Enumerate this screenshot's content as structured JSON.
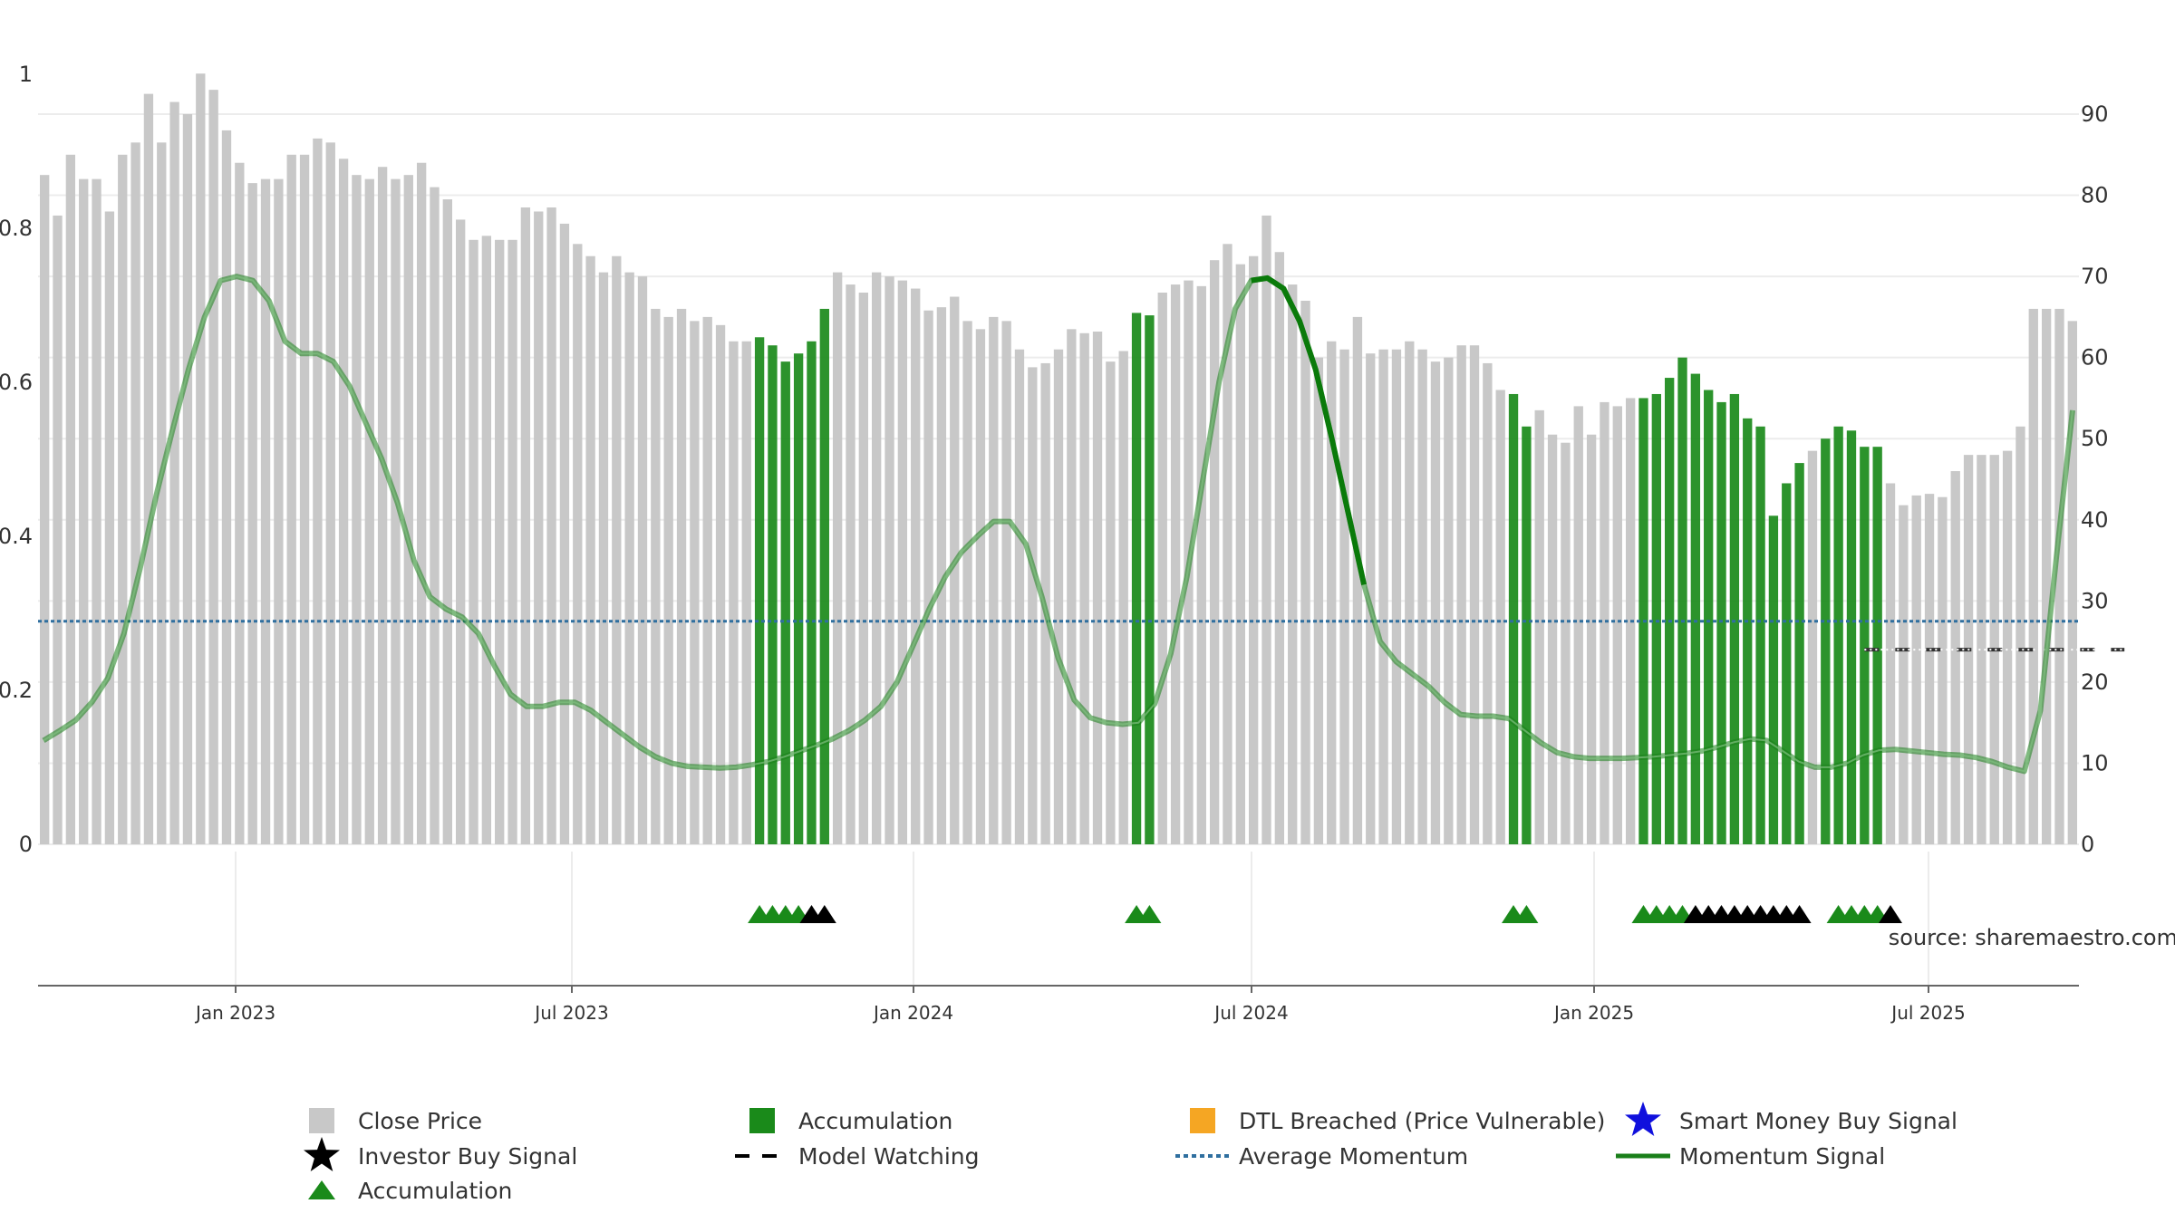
{
  "chart_data": {
    "type": "bar",
    "title": "",
    "watermark": "source: sharemaestro.com",
    "colors": {
      "close_price": "#c8c8c8",
      "accumulation": "#1a8a1a",
      "momentum": "#1a7f1a",
      "average_momentum": "#2f6f9f",
      "model_watching": "#333333",
      "investor_buy": "#000000",
      "dtl_breached": "#f5a623",
      "smart_money": "#1010dd"
    },
    "x_axis": {
      "ticks": [
        "Jan 2023",
        "Jul 2023",
        "Jan 2024",
        "Jul 2024",
        "Jan 2025",
        "Jul 2025"
      ]
    },
    "left_axis": {
      "range": [
        0,
        1
      ],
      "tick_values": [
        0,
        0.2,
        0.4,
        0.6,
        0.8,
        1
      ],
      "tick_labels": [
        "0",
        "0.2",
        "0.4",
        "0.6",
        "0.8",
        "1"
      ]
    },
    "right_axis": {
      "range": [
        0,
        90
      ],
      "tick_values": [
        0,
        10,
        20,
        30,
        40,
        50,
        60,
        70,
        80,
        90
      ],
      "tick_labels": [
        "0",
        "10",
        "20",
        "30",
        "40",
        "50",
        "60",
        "70",
        "80",
        "90"
      ]
    },
    "close_price_scale": [
      0,
      90
    ],
    "close_price": [
      82.5,
      77.5,
      85,
      82,
      82,
      78,
      85,
      86.5,
      92.5,
      86.5,
      91.5,
      90,
      95,
      93,
      88,
      84,
      81.5,
      82,
      82,
      85,
      85,
      87,
      86.5,
      84.5,
      82.5,
      82,
      83.5,
      82,
      82.5,
      84,
      81,
      79.5,
      77,
      74.5,
      75,
      74.5,
      74.5,
      78.5,
      78,
      78.5,
      76.5,
      74,
      72.5,
      70.5,
      72.5,
      70.5,
      70,
      66,
      65,
      66,
      64.5,
      65,
      64,
      62,
      62,
      62.5,
      61.5,
      59.5,
      60.5,
      62,
      66,
      70.5,
      69,
      68,
      70.5,
      70,
      69.5,
      68.5,
      65.8,
      66.2,
      67.5,
      64.5,
      63.5,
      65,
      64.5,
      61,
      58.8,
      59.3,
      61,
      63.5,
      63,
      63.2,
      59.5,
      60.8,
      65.5,
      65.2,
      68,
      69,
      69.5,
      68.8,
      72,
      74,
      71.5,
      72.5,
      77.5,
      73,
      69,
      67,
      60,
      62,
      61,
      65,
      60.5,
      61,
      61,
      62,
      61,
      59.5,
      60,
      61.5,
      61.5,
      59.3,
      56,
      55.5,
      51.5,
      53.5,
      50.5,
      49.5,
      54,
      50.5,
      54.5,
      54,
      55,
      55,
      55.5,
      57.5,
      60,
      58,
      56,
      54.5,
      55.5,
      52.5,
      51.5,
      40.5,
      44.5,
      47,
      48.5,
      50,
      51.5,
      51,
      49,
      49,
      44.5,
      41.8,
      43,
      43.2,
      42.8,
      46,
      48,
      48,
      48,
      48.5,
      51.5,
      66,
      66,
      66,
      64.5
    ],
    "accumulation_bars": [
      55,
      56,
      57,
      58,
      59,
      60,
      84,
      85,
      113,
      114,
      123,
      124,
      125,
      126,
      127,
      128,
      129,
      130,
      131,
      132,
      133,
      134,
      135,
      137,
      138,
      139,
      140,
      141
    ],
    "momentum": [
      12.8,
      14,
      15.3,
      17.5,
      20.5,
      26,
      34,
      43,
      51,
      58.5,
      65,
      69.5,
      70,
      69.5,
      67,
      62,
      60.5,
      60.5,
      59.5,
      56.5,
      52,
      47.5,
      42,
      35,
      30.5,
      29,
      28,
      26,
      22,
      18.5,
      17,
      17,
      17.5,
      17.5,
      16.5,
      15,
      13.5,
      12,
      10.8,
      10,
      9.6,
      9.5,
      9.4,
      9.5,
      9.8,
      10.2,
      10.8,
      11.5,
      12.2,
      13,
      14,
      15.3,
      17,
      20,
      24.5,
      29,
      33,
      36,
      38,
      39.8,
      39.8,
      37,
      30.5,
      23,
      17.8,
      15.6,
      15,
      14.8,
      15,
      17.3,
      23.5,
      33,
      45,
      57,
      66,
      69.5,
      69.8,
      68.5,
      64.5,
      58.5,
      50,
      41,
      32,
      25,
      22.5,
      21,
      19.5,
      17.5,
      16,
      15.8,
      15.8,
      15.5,
      14,
      12.5,
      11.3,
      10.8,
      10.6,
      10.6,
      10.6,
      10.7,
      10.8,
      11,
      11.2,
      11.5,
      12,
      12.6,
      13,
      12.8,
      11.5,
      10.2,
      9.5,
      9.5,
      10,
      11,
      11.6,
      11.7,
      11.5,
      11.3,
      11.1,
      11,
      10.7,
      10.2,
      9.5,
      9,
      16.5,
      35.5,
      53.5
    ],
    "momentum_highlight": [
      [
        75,
        82
      ]
    ],
    "average_momentum": 27.5,
    "model_watching_value": 24,
    "model_watching_range": [
      140,
      160
    ],
    "accumulation_markers": [
      55,
      56,
      57,
      58,
      84,
      85,
      113,
      114,
      123,
      124,
      125,
      126,
      138,
      139,
      140,
      141
    ],
    "investor_buy_markers": [
      59,
      60,
      127,
      128,
      129,
      130,
      131,
      132,
      133,
      134,
      135,
      142
    ],
    "legend": [
      {
        "label": "Close Price",
        "shape": "square",
        "color": "#c8c8c8"
      },
      {
        "label": "Accumulation",
        "shape": "square",
        "color": "#1a8a1a"
      },
      {
        "label": "DTL Breached (Price Vulnerable)",
        "shape": "square",
        "color": "#f5a623"
      },
      {
        "label": "Smart Money Buy Signal",
        "shape": "star",
        "color": "#1010dd"
      },
      {
        "label": "Investor Buy Signal",
        "shape": "star",
        "color": "#000000"
      },
      {
        "label": "Model Watching",
        "shape": "dash",
        "color": "#000000"
      },
      {
        "label": "Average Momentum",
        "shape": "dotted",
        "color": "#2f6f9f"
      },
      {
        "label": "Momentum Signal",
        "shape": "line",
        "color": "#1a7f1a"
      },
      {
        "label": "Accumulation",
        "shape": "triangle",
        "color": "#1a8a1a"
      }
    ]
  }
}
